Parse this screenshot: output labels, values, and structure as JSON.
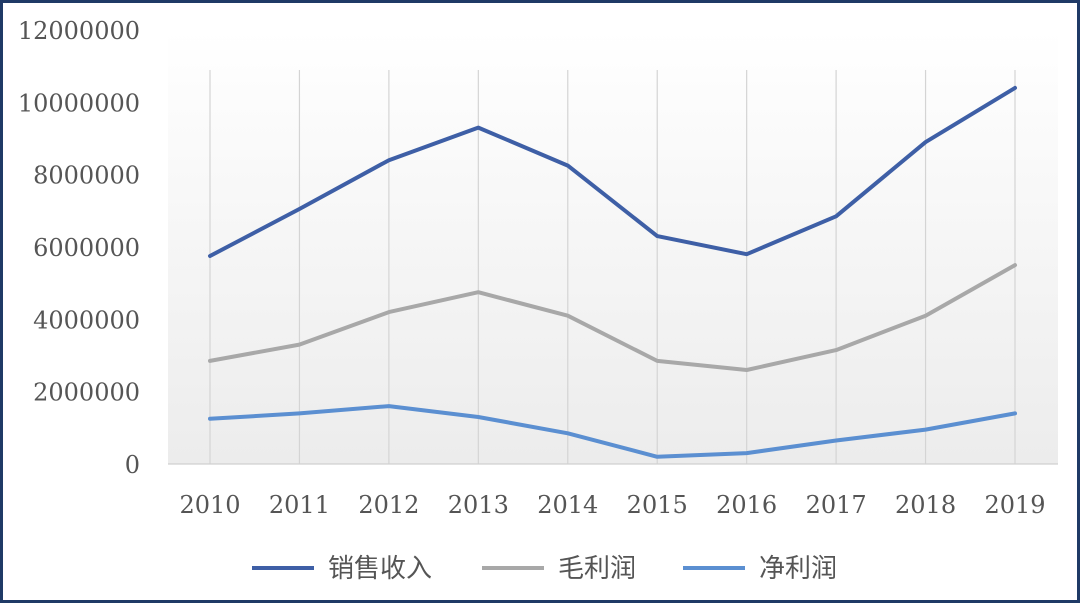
{
  "chart_data": {
    "type": "line",
    "categories": [
      "2010",
      "2011",
      "2012",
      "2013",
      "2014",
      "2015",
      "2016",
      "2017",
      "2018",
      "2019"
    ],
    "ylim": [
      0,
      12000000
    ],
    "y_ticks": [
      "0",
      "2000000",
      "4000000",
      "6000000",
      "8000000",
      "10000000",
      "12000000"
    ],
    "grid": "vertical",
    "legend_position": "bottom",
    "series": [
      {
        "name": "销售收入",
        "color": "#3e5fa6",
        "values": [
          5750000,
          7050000,
          8400000,
          9300000,
          8250000,
          6300000,
          5800000,
          6850000,
          8900000,
          10400000
        ]
      },
      {
        "name": "毛利润",
        "color": "#a8a8a8",
        "values": [
          2850000,
          3300000,
          4200000,
          4750000,
          4100000,
          2850000,
          2600000,
          3150000,
          4100000,
          5500000
        ]
      },
      {
        "name": "净利润",
        "color": "#5b8fd1",
        "values": [
          1250000,
          1400000,
          1600000,
          1300000,
          850000,
          200000,
          300000,
          650000,
          950000,
          1400000
        ]
      }
    ]
  }
}
